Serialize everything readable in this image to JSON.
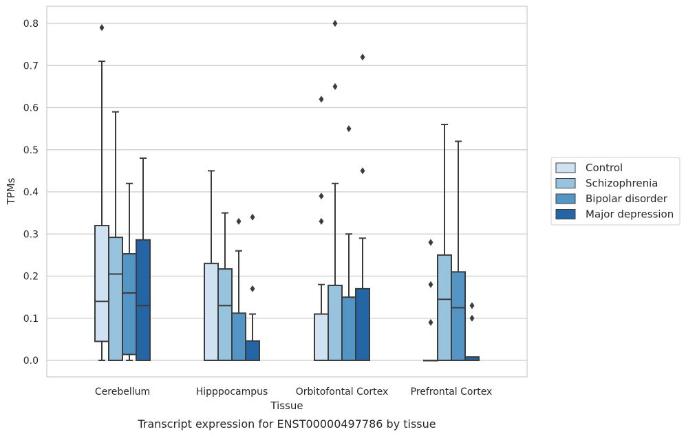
{
  "chart_data": {
    "type": "box",
    "title": "",
    "caption": "Transcript expression for ENST00000497786 by tissue",
    "xlabel": "Tissue",
    "ylabel": "TPMs",
    "ylim": [
      -0.04,
      0.84
    ],
    "yticks": [
      "0.0",
      "0.1",
      "0.2",
      "0.3",
      "0.4",
      "0.5",
      "0.6",
      "0.7",
      "0.8"
    ],
    "grid": true,
    "legend_position": "right",
    "categories": [
      "Cerebellum",
      "Hipppocampus",
      "Orbitofontal Cortex",
      "Prefrontal Cortex"
    ],
    "series": [
      {
        "name": "Control",
        "color": "#d0e1f1",
        "boxes": [
          {
            "whisker_low": 0.0,
            "q1": 0.045,
            "median": 0.14,
            "q3": 0.32,
            "whisker_high": 0.71,
            "outliers": [
              0.79
            ]
          },
          {
            "whisker_low": 0.0,
            "q1": 0.0,
            "median": 0.0,
            "q3": 0.23,
            "whisker_high": 0.45,
            "outliers": []
          },
          {
            "whisker_low": 0.0,
            "q1": 0.0,
            "median": 0.0,
            "q3": 0.11,
            "whisker_high": 0.18,
            "outliers": [
              0.33,
              0.39,
              0.62
            ]
          },
          {
            "whisker_low": 0.0,
            "q1": 0.0,
            "median": 0.0,
            "q3": 0.0,
            "whisker_high": 0.0,
            "outliers": [
              0.09,
              0.18,
              0.28
            ]
          }
        ]
      },
      {
        "name": "Schizophrenia",
        "color": "#97c3df",
        "boxes": [
          {
            "whisker_low": 0.0,
            "q1": 0.0,
            "median": 0.205,
            "q3": 0.292,
            "whisker_high": 0.59,
            "outliers": []
          },
          {
            "whisker_low": 0.0,
            "q1": 0.0,
            "median": 0.13,
            "q3": 0.217,
            "whisker_high": 0.35,
            "outliers": []
          },
          {
            "whisker_low": 0.0,
            "q1": 0.0,
            "median": 0.0,
            "q3": 0.178,
            "whisker_high": 0.42,
            "outliers": [
              0.65,
              0.8
            ]
          },
          {
            "whisker_low": 0.0,
            "q1": 0.0,
            "median": 0.145,
            "q3": 0.25,
            "whisker_high": 0.56,
            "outliers": []
          }
        ]
      },
      {
        "name": "Bipolar disorder",
        "color": "#5396c6",
        "boxes": [
          {
            "whisker_low": 0.0,
            "q1": 0.014,
            "median": 0.16,
            "q3": 0.253,
            "whisker_high": 0.42,
            "outliers": []
          },
          {
            "whisker_low": 0.0,
            "q1": 0.0,
            "median": 0.0,
            "q3": 0.112,
            "whisker_high": 0.26,
            "outliers": [
              0.33
            ]
          },
          {
            "whisker_low": 0.0,
            "q1": 0.0,
            "median": 0.0,
            "q3": 0.15,
            "whisker_high": 0.3,
            "outliers": [
              0.55
            ]
          },
          {
            "whisker_low": 0.0,
            "q1": 0.0,
            "median": 0.125,
            "q3": 0.21,
            "whisker_high": 0.52,
            "outliers": []
          }
        ]
      },
      {
        "name": "Major depression",
        "color": "#2465a6",
        "boxes": [
          {
            "whisker_low": 0.0,
            "q1": 0.0,
            "median": 0.13,
            "q3": 0.286,
            "whisker_high": 0.48,
            "outliers": []
          },
          {
            "whisker_low": 0.0,
            "q1": 0.0,
            "median": 0.0,
            "q3": 0.046,
            "whisker_high": 0.11,
            "outliers": [
              0.17,
              0.34
            ]
          },
          {
            "whisker_low": 0.0,
            "q1": 0.0,
            "median": 0.0,
            "q3": 0.17,
            "whisker_high": 0.29,
            "outliers": [
              0.45,
              0.72
            ]
          },
          {
            "whisker_low": 0.0,
            "q1": 0.0,
            "median": 0.0,
            "q3": 0.008,
            "whisker_high": 0.008,
            "outliers": [
              0.1,
              0.13
            ]
          }
        ]
      }
    ]
  }
}
